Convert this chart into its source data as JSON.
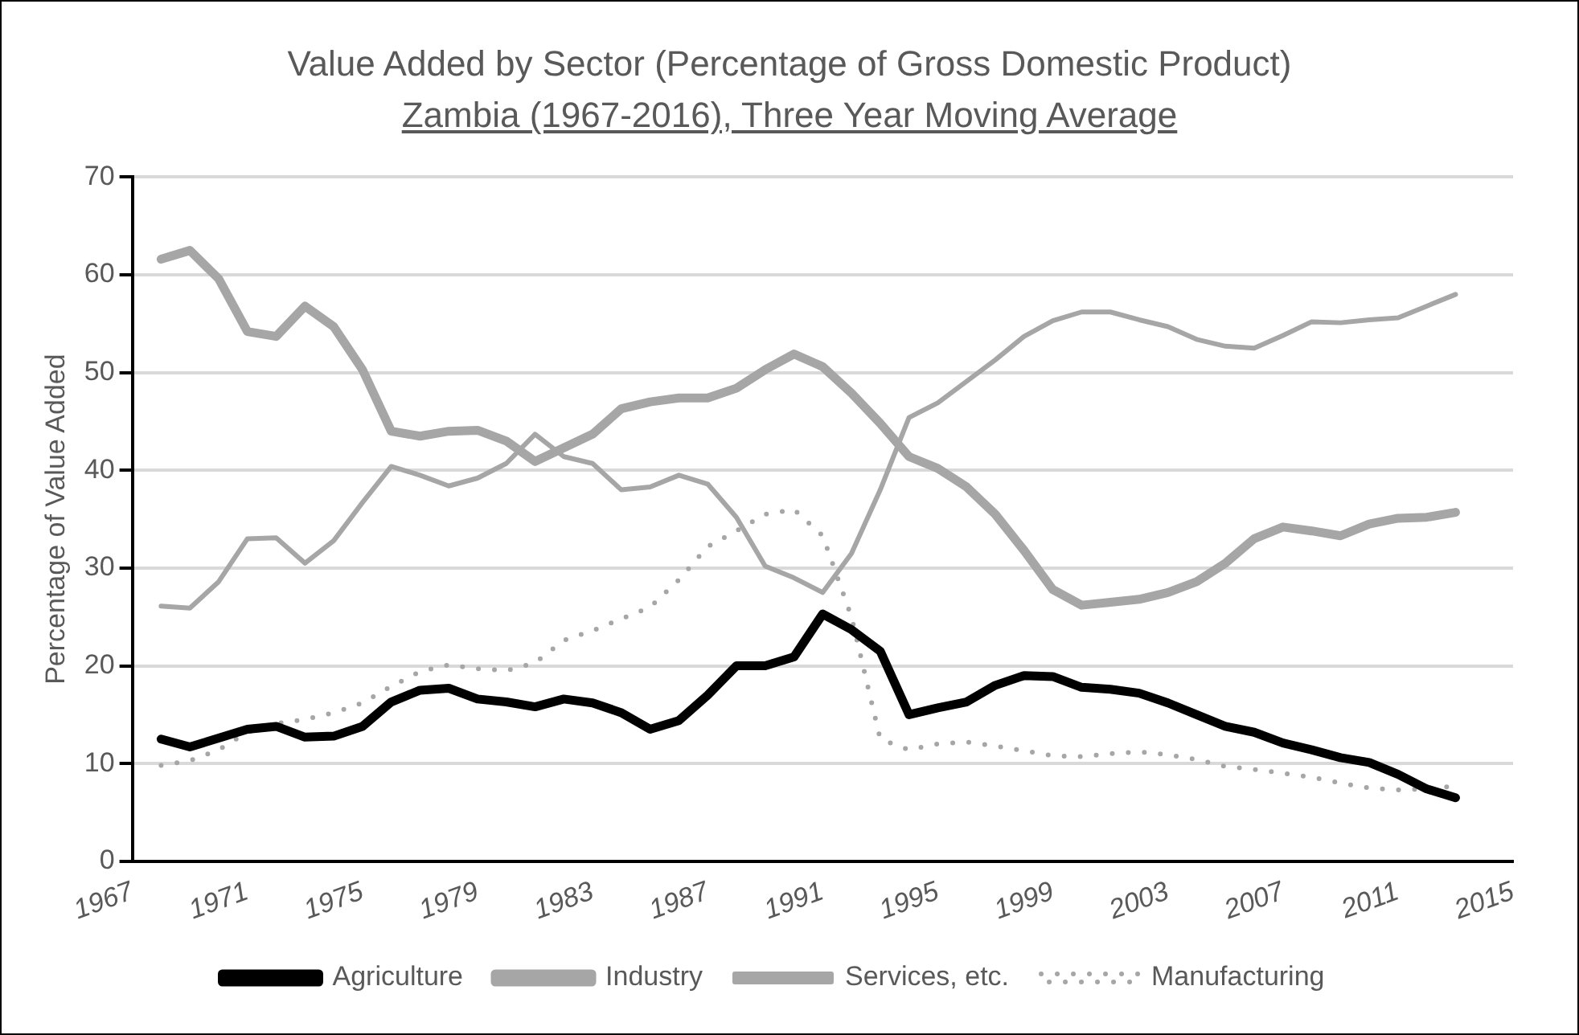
{
  "chart_data": {
    "type": "line",
    "title": "Value Added by Sector (Percentage of Gross Domestic Product)",
    "subtitle": "Zambia (1967-2016), Three Year Moving Average",
    "ylabel": "Percentage of Value Added",
    "categories": [
      "1967",
      null,
      null,
      null,
      "1971",
      null,
      null,
      null,
      "1975",
      null,
      null,
      null,
      "1979",
      null,
      null,
      null,
      "1983",
      null,
      null,
      null,
      "1987",
      null,
      null,
      null,
      "1991",
      null,
      null,
      null,
      "1995",
      null,
      null,
      null,
      "1999",
      null,
      null,
      null,
      "2003",
      null,
      null,
      null,
      "2007",
      null,
      null,
      null,
      "2011",
      null,
      null,
      null,
      "2015"
    ],
    "ylim": [
      0,
      70
    ],
    "yticks": [
      0,
      10,
      20,
      30,
      40,
      50,
      60,
      70
    ],
    "grid": "y",
    "legend": "bottom",
    "marker": "none",
    "series": [
      {
        "name": "Agriculture",
        "color": "#000000",
        "line_style": "solid",
        "values": [
          null,
          12.5,
          11.7,
          12.6,
          13.5,
          13.8,
          12.7,
          12.8,
          13.8,
          16.3,
          17.5,
          17.7,
          16.6,
          16.3,
          15.8,
          16.6,
          16.2,
          15.2,
          13.5,
          14.4,
          17.0,
          20.0,
          20.0,
          20.9,
          25.3,
          23.7,
          21.5,
          15.0,
          15.7,
          16.3,
          18.0,
          19.0,
          18.9,
          17.8,
          17.6,
          17.2,
          16.2,
          15.0,
          13.8,
          13.2,
          12.1,
          11.4,
          10.6,
          10.1,
          8.9,
          7.4,
          6.5,
          null,
          null
        ]
      },
      {
        "name": "Industry",
        "color": "#a6a6a6",
        "line_style": "solid",
        "values": [
          null,
          61.6,
          62.5,
          59.6,
          54.2,
          53.7,
          56.8,
          54.7,
          50.3,
          44.0,
          43.5,
          44.0,
          44.1,
          43.0,
          40.9,
          42.3,
          43.7,
          46.3,
          47.0,
          47.4,
          47.4,
          48.4,
          50.3,
          51.9,
          50.6,
          47.9,
          44.8,
          41.4,
          40.2,
          38.3,
          35.5,
          31.8,
          27.8,
          26.2,
          26.5,
          26.8,
          27.5,
          28.6,
          30.5,
          33.0,
          34.2,
          33.8,
          33.3,
          34.5,
          35.1,
          35.2,
          35.7,
          null,
          null
        ]
      },
      {
        "name": "Services, etc.",
        "color": "#a6a6a6",
        "line_style": "solid",
        "values": [
          null,
          26.1,
          25.9,
          28.6,
          33.0,
          33.1,
          30.5,
          32.8,
          36.7,
          40.4,
          39.5,
          38.4,
          39.2,
          40.7,
          43.7,
          41.4,
          40.7,
          38.0,
          38.3,
          39.5,
          38.6,
          35.2,
          30.2,
          29.0,
          27.5,
          31.5,
          38.0,
          45.4,
          46.9,
          49.1,
          51.3,
          53.7,
          55.3,
          56.2,
          56.2,
          55.4,
          54.7,
          53.4,
          52.7,
          52.5,
          53.8,
          55.2,
          55.1,
          55.4,
          55.6,
          56.8,
          58.0,
          null,
          null
        ]
      },
      {
        "name": "Manufacturing",
        "color": "#a6a6a6",
        "line_style": "dotted",
        "values": [
          null,
          9.8,
          10.3,
          11.4,
          13.2,
          14.1,
          14.5,
          15.2,
          16.2,
          17.9,
          19.4,
          20.1,
          19.7,
          19.5,
          20.3,
          22.6,
          23.6,
          24.8,
          26.0,
          28.8,
          32.2,
          33.8,
          35.5,
          36.0,
          33.3,
          25.0,
          12.5,
          11.4,
          12.0,
          12.2,
          11.8,
          11.3,
          10.8,
          10.7,
          11.0,
          11.2,
          10.9,
          10.4,
          9.7,
          9.4,
          9.0,
          8.6,
          8.0,
          7.5,
          7.3,
          7.4,
          7.7,
          null,
          null
        ]
      }
    ]
  }
}
